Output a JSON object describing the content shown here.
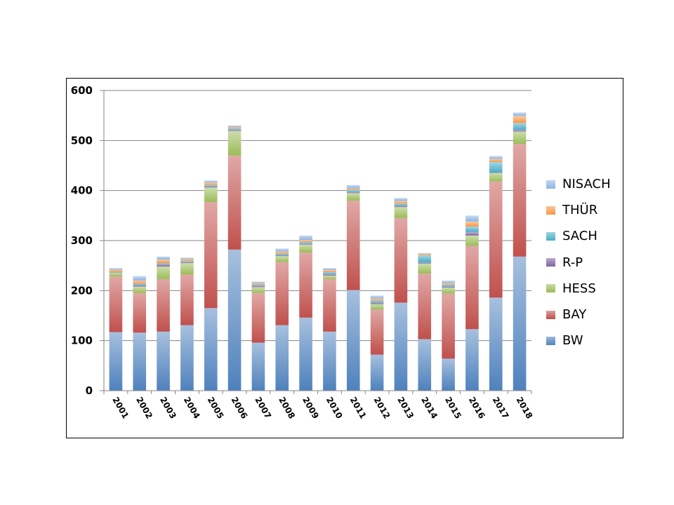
{
  "chart_data": {
    "type": "bar",
    "stacked": true,
    "title": "",
    "xlabel": "",
    "ylabel": "",
    "ylim": [
      0,
      600
    ],
    "yticks": [
      "0",
      "100",
      "200",
      "300",
      "400",
      "500",
      "600"
    ],
    "grid": true,
    "legend_position": "right",
    "categories": [
      "2001",
      "2002",
      "2003",
      "2004",
      "2005",
      "2006",
      "2007",
      "2008",
      "2009",
      "2010",
      "2011",
      "2012",
      "2013",
      "2014",
      "2015",
      "2016",
      "2017",
      "2018"
    ],
    "series": [
      {
        "name": "BW",
        "color": "#4f81bd",
        "values": [
          117,
          116,
          118,
          131,
          165,
          282,
          96,
          131,
          146,
          118,
          201,
          72,
          176,
          103,
          64,
          123,
          186,
          268
        ]
      },
      {
        "name": "BAY",
        "color": "#c0504d",
        "values": [
          111,
          79,
          105,
          101,
          212,
          188,
          99,
          126,
          130,
          105,
          179,
          90,
          169,
          131,
          130,
          166,
          232,
          225
        ]
      },
      {
        "name": "HESS",
        "color": "#9bbb59",
        "values": [
          8,
          13,
          25,
          23,
          29,
          49,
          12,
          12,
          16,
          7,
          15,
          11,
          22,
          20,
          12,
          21,
          17,
          25
        ]
      },
      {
        "name": "R-P",
        "color": "#8064a2",
        "values": [
          1,
          3,
          5,
          2,
          2,
          2,
          3,
          2,
          2,
          3,
          2,
          3,
          3,
          2,
          2,
          7,
          1,
          3
        ]
      },
      {
        "name": "SACH",
        "color": "#4bacc6",
        "values": [
          1,
          3,
          2,
          2,
          3,
          3,
          2,
          3,
          3,
          4,
          4,
          4,
          4,
          15,
          4,
          11,
          21,
          14
        ]
      },
      {
        "name": "THÜR",
        "color": "#f79646",
        "values": [
          4,
          6,
          7,
          4,
          5,
          3,
          3,
          4,
          4,
          4,
          3,
          4,
          5,
          3,
          3,
          10,
          6,
          14
        ]
      },
      {
        "name": "NISACH",
        "color": "#8eb4e3",
        "values": [
          3,
          9,
          6,
          3,
          4,
          3,
          3,
          6,
          9,
          4,
          7,
          6,
          6,
          1,
          5,
          12,
          6,
          7
        ]
      }
    ],
    "legend_order": [
      "NISACH",
      "THÜR",
      "SACH",
      "R-P",
      "HESS",
      "BAY",
      "BW"
    ]
  }
}
